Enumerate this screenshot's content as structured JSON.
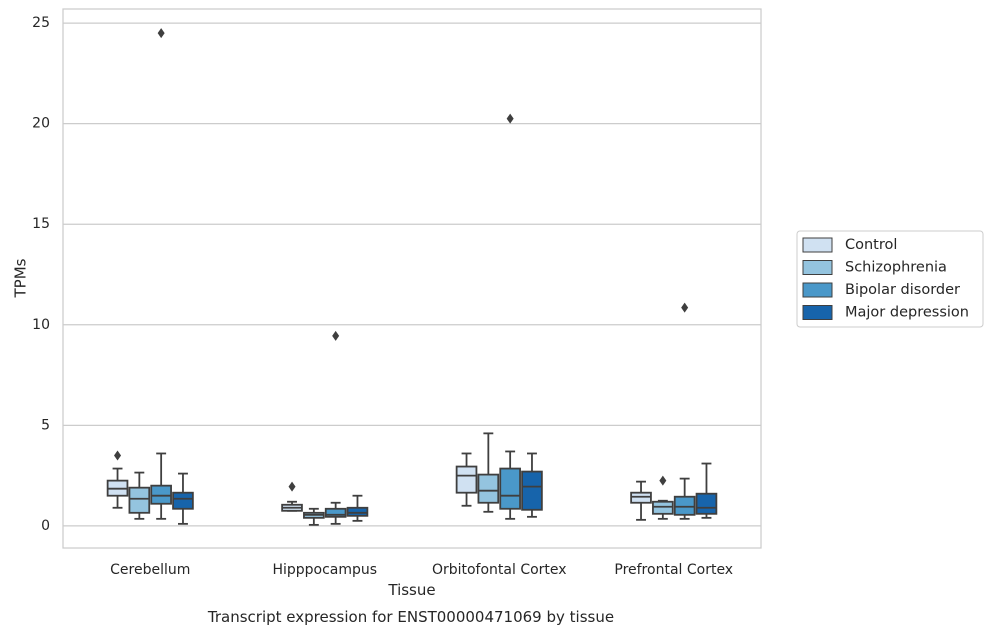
{
  "chart_data": {
    "type": "boxplot",
    "title": "Transcript expression for ENST00000471069 by tissue",
    "xlabel": "Tissue",
    "ylabel": "TPMs",
    "ylim": [
      -1.1,
      25.7
    ],
    "yticks": [
      0,
      5,
      10,
      15,
      20,
      25
    ],
    "grid": "horizontal",
    "legend_position": "right",
    "categories": [
      "Cerebellum",
      "Hipppocampus",
      "Orbitofontal Cortex",
      "Prefrontal Cortex"
    ],
    "series": [
      {
        "name": "Control",
        "color": "#d0e1f2",
        "boxes": [
          {
            "whislo": 0.9,
            "q1": 1.5,
            "med": 1.85,
            "q3": 2.25,
            "whishi": 2.85,
            "fliers": [
              3.5
            ]
          },
          {
            "whislo": 0.75,
            "q1": 0.75,
            "med": 0.9,
            "q3": 1.05,
            "whishi": 1.2,
            "fliers": [
              1.95
            ]
          },
          {
            "whislo": 1.0,
            "q1": 1.65,
            "med": 2.5,
            "q3": 2.95,
            "whishi": 3.6,
            "fliers": []
          },
          {
            "whislo": 0.3,
            "q1": 1.15,
            "med": 1.45,
            "q3": 1.65,
            "whishi": 2.2,
            "fliers": []
          }
        ]
      },
      {
        "name": "Schizophrenia",
        "color": "#94c4df",
        "boxes": [
          {
            "whislo": 0.35,
            "q1": 0.65,
            "med": 1.35,
            "q3": 1.9,
            "whishi": 2.65,
            "fliers": []
          },
          {
            "whislo": 0.05,
            "q1": 0.4,
            "med": 0.55,
            "q3": 0.65,
            "whishi": 0.85,
            "fliers": []
          },
          {
            "whislo": 0.7,
            "q1": 1.15,
            "med": 1.75,
            "q3": 2.55,
            "whishi": 4.6,
            "fliers": []
          },
          {
            "whislo": 0.35,
            "q1": 0.6,
            "med": 0.95,
            "q3": 1.2,
            "whishi": 1.25,
            "fliers": [
              2.25
            ]
          }
        ]
      },
      {
        "name": "Bipolar disorder",
        "color": "#4a98c9",
        "boxes": [
          {
            "whislo": 0.35,
            "q1": 1.1,
            "med": 1.5,
            "q3": 2.0,
            "whishi": 3.6,
            "fliers": [
              24.5
            ]
          },
          {
            "whislo": 0.1,
            "q1": 0.45,
            "med": 0.55,
            "q3": 0.85,
            "whishi": 1.15,
            "fliers": [
              9.45
            ]
          },
          {
            "whislo": 0.35,
            "q1": 0.85,
            "med": 1.5,
            "q3": 2.85,
            "whishi": 3.7,
            "fliers": [
              20.25
            ]
          },
          {
            "whislo": 0.35,
            "q1": 0.55,
            "med": 0.95,
            "q3": 1.45,
            "whishi": 2.35,
            "fliers": [
              10.85
            ]
          }
        ]
      },
      {
        "name": "Major depression",
        "color": "#1764ab",
        "boxes": [
          {
            "whislo": 0.1,
            "q1": 0.85,
            "med": 1.35,
            "q3": 1.65,
            "whishi": 2.6,
            "fliers": []
          },
          {
            "whislo": 0.25,
            "q1": 0.5,
            "med": 0.65,
            "q3": 0.9,
            "whishi": 1.5,
            "fliers": []
          },
          {
            "whislo": 0.45,
            "q1": 0.8,
            "med": 1.95,
            "q3": 2.7,
            "whishi": 3.6,
            "fliers": []
          },
          {
            "whislo": 0.4,
            "q1": 0.6,
            "med": 0.9,
            "q3": 1.6,
            "whishi": 3.1,
            "fliers": []
          }
        ]
      }
    ],
    "colors": {
      "edge": "#3f3f3f",
      "grid": "#cccccc",
      "frame": "#cccccc"
    }
  }
}
